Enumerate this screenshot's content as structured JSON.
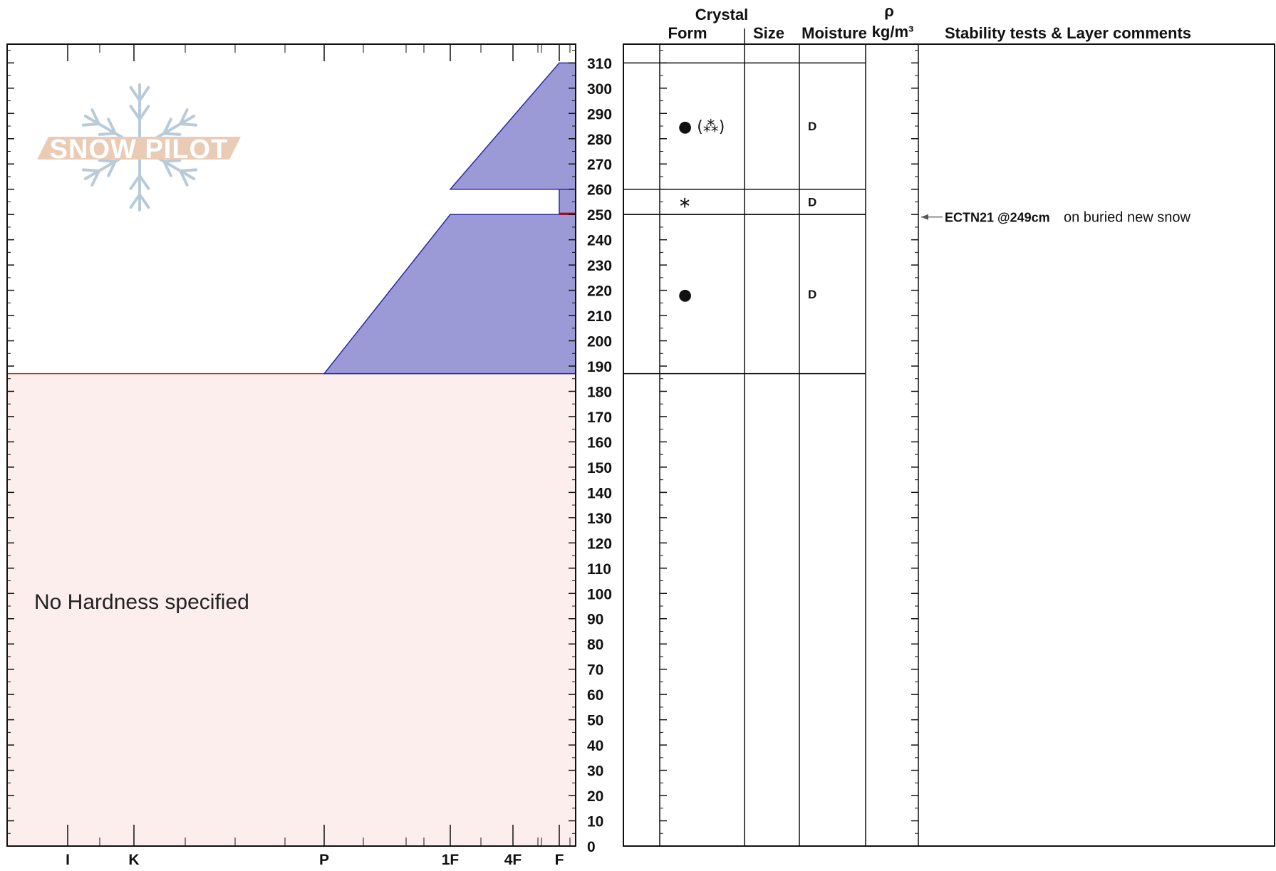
{
  "chart_data": {
    "type": "snow-profile",
    "y_axis": {
      "min": 0,
      "max": 320,
      "major_step": 10,
      "unit": "cm"
    },
    "hardness_scale": [
      "I",
      "K",
      "P",
      "1F",
      "4F",
      "F"
    ],
    "headers": {
      "crystal": "Crystal",
      "form": "Form",
      "size": "Size",
      "moisture": "Moisture",
      "density_symbol": "ρ",
      "density_unit": "kg/m³",
      "comments": "Stability tests & Layer comments"
    },
    "layers": [
      {
        "top": 310,
        "bottom": 260,
        "hardness_top": "F",
        "hardness_bottom": "1F",
        "form": "● (⁂)",
        "moisture": "D"
      },
      {
        "top": 260,
        "bottom": 250,
        "hardness_top": "F",
        "hardness_bottom": "F",
        "form": "∗",
        "moisture": "D"
      },
      {
        "top": 250,
        "bottom": 187,
        "hardness_top": "1F",
        "hardness_bottom": "P",
        "form": "●",
        "moisture": "D"
      }
    ],
    "no_hardness_region": {
      "top": 187,
      "bottom": 0,
      "label": "No Hardness specified"
    },
    "stability_tests": [
      {
        "depth": 249,
        "test": "ECTN21 @249cm",
        "comment": "on buried new snow"
      }
    ],
    "logo_text": "SNOW PILOT",
    "colors": {
      "layer_fill": "#9b9ad6",
      "layer_stroke": "#2a2aa8",
      "no_hardness_fill": "#fdeeee",
      "no_hardness_line": "#a03a2a",
      "weak_layer": "#c00000",
      "logo_color": "#e9cbb6",
      "snowflake_color": "#b9cbd8"
    }
  }
}
